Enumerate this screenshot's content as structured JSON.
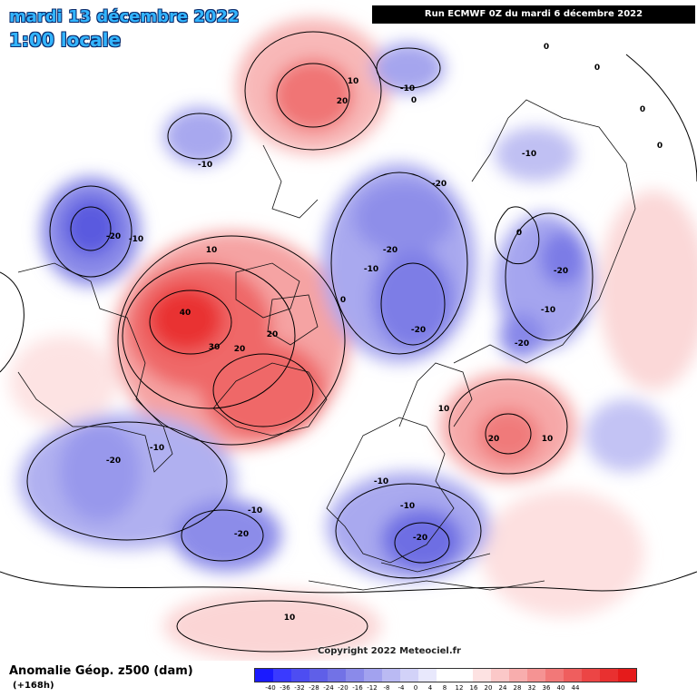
{
  "header": {
    "date": "mardi 13 décembre 2022",
    "time": "1:00 locale",
    "run": "Run ECMWF 0Z du mardi 6 décembre 2022"
  },
  "footer": {
    "title": "Anomalie Géop. z500 (dam)",
    "subtitle": "(+168h)",
    "copyright": "Copyright 2022 Meteociel.fr"
  },
  "scale": {
    "labels": [
      "-40",
      "-36",
      "-32",
      "-28",
      "-24",
      "-20",
      "-16",
      "-12",
      "-8",
      "-4",
      "0",
      "4",
      "8",
      "12",
      "16",
      "20",
      "24",
      "28",
      "32",
      "36",
      "40",
      "44"
    ],
    "colors": [
      "#1a1aff",
      "#3a3aff",
      "#4d4df2",
      "#5f5fe8",
      "#7272e6",
      "#8a8aea",
      "#a2a2ef",
      "#babaf3",
      "#d2d2f8",
      "#e8e8fc",
      "#ffffff",
      "#ffffff",
      "#fde2e2",
      "#fbc8c8",
      "#f8adad",
      "#f59393",
      "#f27878",
      "#ef5e5e",
      "#ec4545",
      "#e93030",
      "#e51b1b"
    ]
  },
  "anomalies": [
    {
      "label": "40",
      "sign": "positive"
    },
    {
      "label": "30",
      "sign": "positive"
    },
    {
      "label": "20",
      "sign": "positive"
    },
    {
      "label": "20",
      "sign": "positive"
    },
    {
      "label": "10",
      "sign": "positive"
    },
    {
      "label": "20",
      "sign": "positive"
    },
    {
      "label": "10",
      "sign": "positive"
    },
    {
      "label": "20",
      "sign": "positive"
    },
    {
      "label": "10",
      "sign": "positive"
    },
    {
      "label": "10",
      "sign": "positive"
    },
    {
      "label": "10",
      "sign": "positive"
    },
    {
      "label": "-10",
      "sign": "negative"
    },
    {
      "label": "-20",
      "sign": "negative"
    },
    {
      "label": "-10",
      "sign": "negative"
    },
    {
      "label": "-10",
      "sign": "negative"
    },
    {
      "label": "-20",
      "sign": "negative"
    },
    {
      "label": "-10",
      "sign": "negative"
    },
    {
      "label": "-20",
      "sign": "negative"
    },
    {
      "label": "-20",
      "sign": "negative"
    },
    {
      "label": "-10",
      "sign": "negative"
    },
    {
      "label": "-20",
      "sign": "negative"
    },
    {
      "label": "-10",
      "sign": "negative"
    },
    {
      "label": "-20",
      "sign": "negative"
    },
    {
      "label": "-10",
      "sign": "negative"
    },
    {
      "label": "-20",
      "sign": "negative"
    },
    {
      "label": "-10",
      "sign": "negative"
    },
    {
      "label": "-20",
      "sign": "negative"
    },
    {
      "label": "-10",
      "sign": "negative"
    },
    {
      "label": "-10",
      "sign": "negative"
    },
    {
      "label": "-20",
      "sign": "negative"
    },
    {
      "label": "0",
      "sign": "zero"
    },
    {
      "label": "0",
      "sign": "zero"
    },
    {
      "label": "0",
      "sign": "zero"
    },
    {
      "label": "0",
      "sign": "zero"
    },
    {
      "label": "0",
      "sign": "zero"
    },
    {
      "label": "0",
      "sign": "zero"
    },
    {
      "label": "0",
      "sign": "zero"
    }
  ]
}
